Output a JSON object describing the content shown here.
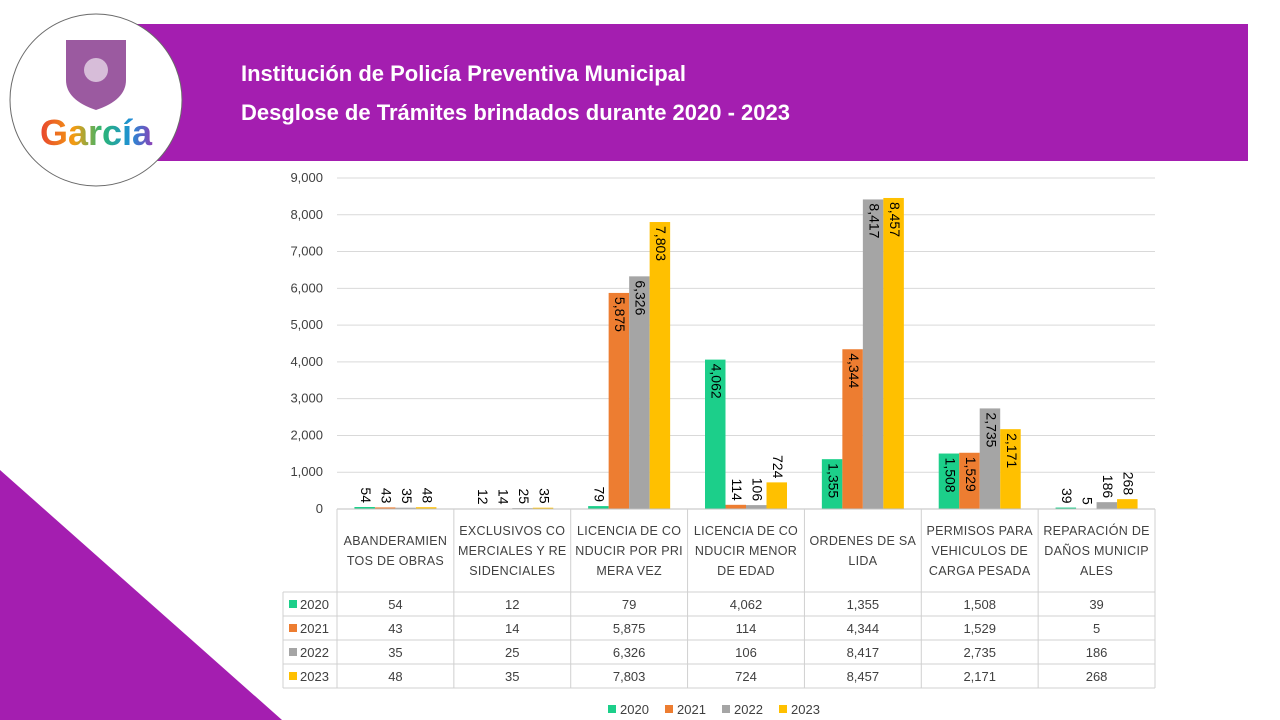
{
  "logo_text": "García",
  "chart_data": {
    "type": "bar",
    "title": "Institución de Policía Preventiva Municipal",
    "subtitle": "Desglose de Trámites brindados durante 2020 - 2023",
    "categories": [
      "ABANDERAMIENTOS DE OBRAS",
      "EXCLUSIVOS COMERCIALES Y RESIDENCIALES",
      "LICENCIA DE CONDUCIR POR PRIMERA VEZ",
      "LICENCIA DE CONDUCIR MENOR DE EDAD",
      "ORDENES DE SALIDA",
      "PERMISOS PARA VEHICULOS DE CARGA PESADA",
      "REPARACIÓN DE DAÑOS MUNICIPALES"
    ],
    "series": [
      {
        "name": "2020",
        "color": "#1ccf8a",
        "values": [
          54,
          12,
          79,
          4062,
          1355,
          1508,
          39
        ],
        "value_labels": [
          "54",
          "12",
          "79",
          "4,062",
          "1,355",
          "1,508",
          "39"
        ]
      },
      {
        "name": "2021",
        "color": "#ed7d31",
        "values": [
          43,
          14,
          5875,
          114,
          4344,
          1529,
          5
        ],
        "value_labels": [
          "43",
          "14",
          "5,875",
          "114",
          "4,344",
          "1,529",
          "5"
        ]
      },
      {
        "name": "2022",
        "color": "#a5a5a5",
        "values": [
          35,
          25,
          6326,
          106,
          8417,
          2735,
          186
        ],
        "value_labels": [
          "35",
          "25",
          "6,326",
          "106",
          "8,417",
          "2,735",
          "186"
        ]
      },
      {
        "name": "2023",
        "color": "#ffc000",
        "values": [
          48,
          35,
          7803,
          724,
          8457,
          2171,
          268
        ],
        "value_labels": [
          "48",
          "35",
          "7,803",
          "724",
          "8,457",
          "2,171",
          "268"
        ]
      }
    ],
    "ylim": [
      0,
      9000
    ],
    "yticks": [
      0,
      {
        "value": 1000,
        "label": "1,000"
      },
      {
        "value": 2000,
        "label": "2,000"
      },
      {
        "value": 3000,
        "label": "3,000"
      },
      {
        "value": 4000,
        "label": "4,000"
      },
      {
        "value": 5000,
        "label": "5,000"
      },
      {
        "value": 6000,
        "label": "6,000"
      },
      {
        "value": 7000,
        "label": "7,000"
      },
      {
        "value": 8000,
        "label": "8,000"
      },
      {
        "value": 9000,
        "label": "9,000"
      }
    ],
    "grid": true
  }
}
